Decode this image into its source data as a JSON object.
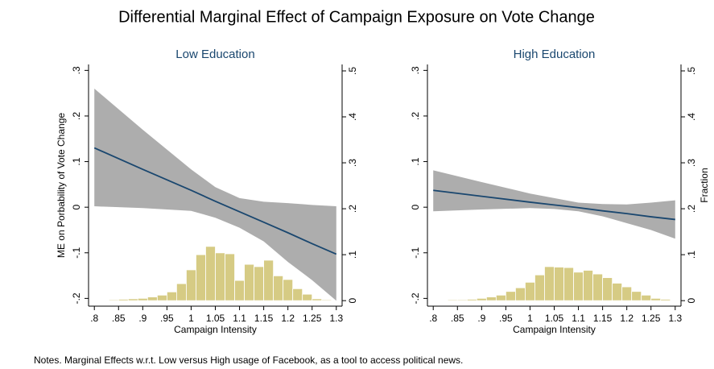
{
  "title": "Differential Marginal Effect of Campaign Exposure on Vote Change",
  "notes": "Notes. Marginal Effects w.r.t. Low versus High usage of Facebook, as a tool to access political news.",
  "chart_data": [
    {
      "type": "line",
      "title": "Low Education",
      "xlabel": "Campaign Intensity",
      "ylabel": "ME on Porbability of Vote Change",
      "x": [
        0.8,
        0.9,
        1.0,
        1.05,
        1.1,
        1.15,
        1.2,
        1.25,
        1.3
      ],
      "series": [
        {
          "color": "#1a476f",
          "values": [
            0.13,
            0.083,
            0.037,
            0.013,
            -0.01,
            -0.033,
            -0.056,
            -0.08,
            -0.103
          ]
        }
      ],
      "band": {
        "color": "#a9a9a9",
        "upper": [
          0.26,
          0.17,
          0.083,
          0.044,
          0.02,
          0.012,
          0.009,
          0.005,
          0.002
        ],
        "lower": [
          0.002,
          -0.002,
          -0.008,
          -0.023,
          -0.045,
          -0.075,
          -0.12,
          -0.16,
          -0.205
        ]
      },
      "histogram": {
        "axis": "y2",
        "color": "#d6cb84",
        "bins": [
          0.83,
          0.85,
          0.87,
          0.89,
          0.91,
          0.93,
          0.95,
          0.97,
          0.99,
          1.01,
          1.03,
          1.05,
          1.07,
          1.09,
          1.11,
          1.13,
          1.15,
          1.17,
          1.19,
          1.21,
          1.23,
          1.25,
          1.27,
          1.29
        ],
        "counts": [
          0.002,
          0.003,
          0.004,
          0.005,
          0.008,
          0.012,
          0.019,
          0.037,
          0.067,
          0.1,
          0.118,
          0.104,
          0.102,
          0.044,
          0.079,
          0.074,
          0.088,
          0.054,
          0.046,
          0.026,
          0.014,
          0.004,
          0.002
        ]
      },
      "xlim": [
        0.788,
        1.312
      ],
      "xticks": [
        {
          "value": 0.8,
          "label": ".8"
        },
        {
          "value": 0.85,
          "label": ".85"
        },
        {
          "value": 0.9,
          "label": ".9"
        },
        {
          "value": 0.95,
          "label": ".95"
        },
        1,
        1.05,
        1.1,
        1.15,
        1.2,
        1.25,
        1.3
      ],
      "ylim": [
        -0.217,
        0.313
      ],
      "yticks": [
        {
          "value": -0.2,
          "label": "-.2"
        },
        {
          "value": -0.1,
          "label": "-.1"
        },
        0,
        {
          "value": 0.1,
          "label": ".1"
        },
        {
          "value": 0.2,
          "label": ".2"
        },
        {
          "value": 0.3,
          "label": ".3"
        }
      ],
      "y2lim": [
        -0.012,
        0.514
      ],
      "y2ticks": [
        0,
        {
          "value": 0.1,
          "label": ".1"
        },
        {
          "value": 0.2,
          "label": ".2"
        },
        {
          "value": 0.3,
          "label": ".3"
        },
        {
          "value": 0.4,
          "label": ".4"
        },
        {
          "value": 0.5,
          "label": ".5"
        }
      ]
    },
    {
      "type": "line",
      "title": "High Education",
      "xlabel": "Campaign Intensity",
      "y2label": "Fraction",
      "x": [
        0.8,
        0.9,
        1.0,
        1.05,
        1.1,
        1.15,
        1.2,
        1.25,
        1.3
      ],
      "series": [
        {
          "color": "#1a476f",
          "values": [
            0.037,
            0.024,
            0.011,
            0.005,
            -0.001,
            -0.008,
            -0.014,
            -0.021,
            -0.027
          ]
        }
      ],
      "band": {
        "color": "#a9a9a9",
        "upper": [
          0.081,
          0.055,
          0.03,
          0.02,
          0.01,
          0.007,
          0.006,
          0.01,
          0.015
        ],
        "lower": [
          -0.009,
          -0.005,
          -0.002,
          -0.004,
          -0.009,
          -0.02,
          -0.035,
          -0.05,
          -0.069
        ]
      },
      "histogram": {
        "axis": "y2",
        "color": "#d6cb84",
        "bins": [
          0.83,
          0.85,
          0.87,
          0.89,
          0.91,
          0.93,
          0.95,
          0.97,
          0.99,
          1.01,
          1.03,
          1.05,
          1.07,
          1.09,
          1.11,
          1.13,
          1.15,
          1.17,
          1.19,
          1.21,
          1.23,
          1.25,
          1.27,
          1.29
        ],
        "counts": [
          0.002,
          0.002,
          0.003,
          0.005,
          0.008,
          0.012,
          0.02,
          0.028,
          0.04,
          0.056,
          0.074,
          0.073,
          0.072,
          0.062,
          0.066,
          0.058,
          0.05,
          0.038,
          0.03,
          0.02,
          0.012,
          0.005,
          0.003
        ]
      },
      "xlim": [
        0.788,
        1.312
      ],
      "xticks": [
        {
          "value": 0.8,
          "label": ".8"
        },
        {
          "value": 0.85,
          "label": ".85"
        },
        {
          "value": 0.9,
          "label": ".9"
        },
        {
          "value": 0.95,
          "label": ".95"
        },
        1,
        1.05,
        1.1,
        1.15,
        1.2,
        1.25,
        1.3
      ],
      "ylim": [
        -0.217,
        0.313
      ],
      "yticks": [
        {
          "value": -0.2,
          "label": "-.2"
        },
        {
          "value": -0.1,
          "label": "-.1"
        },
        0,
        {
          "value": 0.1,
          "label": ".1"
        },
        {
          "value": 0.2,
          "label": ".2"
        },
        {
          "value": 0.3,
          "label": ".3"
        }
      ],
      "y2lim": [
        -0.012,
        0.514
      ],
      "y2ticks": [
        0,
        {
          "value": 0.1,
          "label": ".1"
        },
        {
          "value": 0.2,
          "label": ".2"
        },
        {
          "value": 0.3,
          "label": ".3"
        },
        {
          "value": 0.4,
          "label": ".4"
        },
        {
          "value": 0.5,
          "label": ".5"
        }
      ]
    }
  ]
}
